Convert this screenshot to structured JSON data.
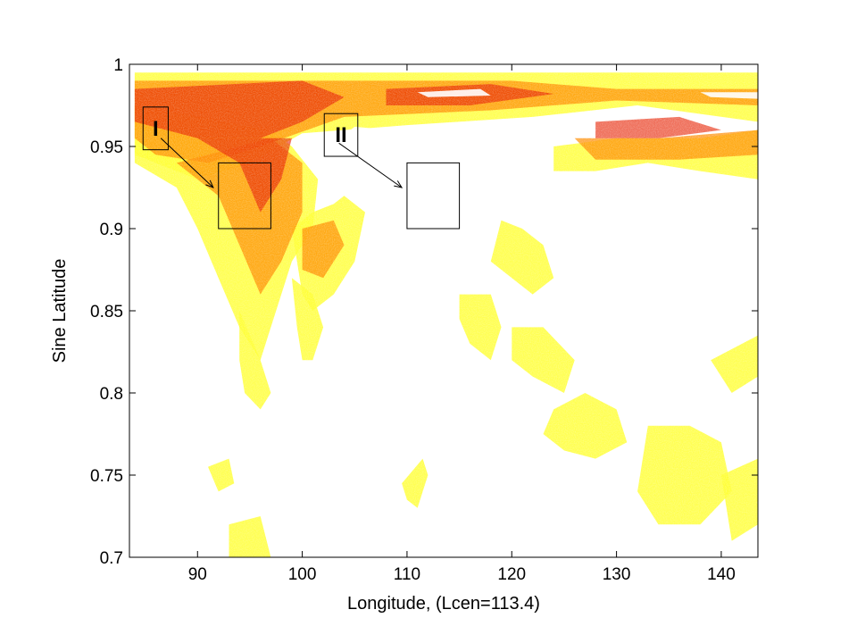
{
  "chart_data": {
    "type": "heatmap",
    "xlabel": "Longitude, (Lcen=113.4)",
    "ylabel": "Sine Latitude",
    "xlim": [
      83.5,
      143.5
    ],
    "ylim": [
      0.7,
      1.0
    ],
    "x_ticks": [
      90,
      100,
      110,
      120,
      130,
      140
    ],
    "y_ticks": [
      0.7,
      0.75,
      0.8,
      0.85,
      0.9,
      0.95,
      1.0
    ],
    "x_tick_labels": [
      "90",
      "100",
      "110",
      "120",
      "130",
      "140"
    ],
    "y_tick_labels": [
      "0.7",
      "0.75",
      "0.8",
      "0.85",
      "0.9",
      "0.95",
      "1"
    ],
    "grid": false,
    "colormap": [
      "#ffffff",
      "#ffff33",
      "#ffcc00",
      "#ff8c00",
      "#ff4500",
      "#e62000"
    ],
    "regions": [
      {
        "label": "I",
        "lon": [
          84.8,
          87.2
        ],
        "lat": [
          0.948,
          0.974
        ]
      },
      {
        "label": "II",
        "lon": [
          102.1,
          105.3
        ],
        "lat": [
          0.944,
          0.97
        ]
      }
    ],
    "zoom_boxes": [
      {
        "lon": [
          92,
          97
        ],
        "lat": [
          0.9,
          0.94
        ]
      },
      {
        "lon": [
          110,
          115
        ],
        "lat": [
          0.9,
          0.94
        ]
      }
    ],
    "arrows": [
      {
        "from": [
          86.5,
          0.955
        ],
        "to": [
          91.5,
          0.925
        ]
      },
      {
        "from": [
          103.5,
          0.952
        ],
        "to": [
          109.5,
          0.925
        ]
      }
    ]
  }
}
